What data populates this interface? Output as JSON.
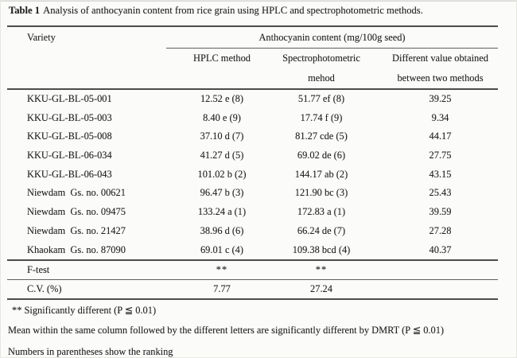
{
  "caption": {
    "label": "Table 1",
    "text": "Analysis of anthocyanin content from rice grain using HPLC and spectrophotometric methods."
  },
  "table": {
    "col1_header": "Variety",
    "span_header": "Anthocyanin content (mg/100g seed)",
    "sub_headers": {
      "hplc": "HPLC method",
      "spectro_line1": "Spectrophotometric",
      "spectro_line2": "mehod",
      "diff_line1": "Different value obtained",
      "diff_line2": "between two methods"
    },
    "rows": [
      {
        "variety": "KKU-GL-BL-05-001",
        "hplc": "12.52 e (8)",
        "spectro": "51.77 ef (8)",
        "diff": "39.25"
      },
      {
        "variety": "KKU-GL-BL-05-003",
        "hplc": "8.40 e (9)",
        "spectro": "17.74 f (9)",
        "diff": "9.34"
      },
      {
        "variety": "KKU-GL-BL-05-008",
        "hplc": "37.10 d (7)",
        "spectro": "81.27 cde (5)",
        "diff": "44.17"
      },
      {
        "variety": "KKU-GL-BL-06-034",
        "hplc": "41.27 d (5)",
        "spectro": "69.02 de (6)",
        "diff": "27.75"
      },
      {
        "variety": "KKU-GL-BL-06-043",
        "hplc": "101.02 b (2)",
        "spectro": "144.17 ab (2)",
        "diff": "43.15"
      },
      {
        "variety": "Niewdam  Gs. no. 00621",
        "hplc": "96.47 b (3)",
        "spectro": "121.90 bc (3)",
        "diff": "25.43"
      },
      {
        "variety": "Niewdam  Gs. no. 09475",
        "hplc": "133.24 a (1)",
        "spectro": "172.83 a (1)",
        "diff": "39.59"
      },
      {
        "variety": "Niewdam  Gs. no. 21427",
        "hplc": "38.96 d (6)",
        "spectro": "66.24 de (7)",
        "diff": "27.28"
      },
      {
        "variety": "Khaokam  Gs. no. 87090",
        "hplc": "69.01 c (4)",
        "spectro": "109.38 bcd (4)",
        "diff": "40.37"
      }
    ],
    "stats": {
      "f_test": {
        "label": "F-test",
        "hplc": "**",
        "spectro": "**",
        "diff": ""
      },
      "cv": {
        "label": "C.V. (%)",
        "hplc": "7.77",
        "spectro": "27.24",
        "diff": ""
      }
    }
  },
  "footnotes": {
    "significance": "** Significantly different (P ≦ 0.01)",
    "dmrt": "Mean within the same column followed by the different letters are significantly different by DMRT (P ≦ 0.01)",
    "ranking": "Numbers in parentheses show the ranking"
  }
}
